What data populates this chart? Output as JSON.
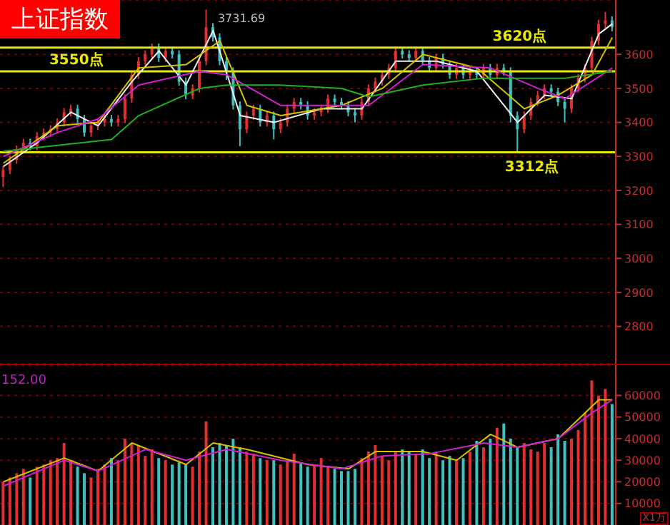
{
  "chart_data": [
    {
      "type": "candlestick",
      "title": "上证指数",
      "categories": [
        null,
        null,
        null,
        null,
        null,
        null,
        null,
        null,
        null,
        null,
        null,
        null,
        null,
        null,
        null,
        null,
        null,
        null,
        null,
        null,
        null,
        null,
        null,
        null,
        null,
        null,
        null,
        null,
        null,
        null,
        null,
        null,
        null,
        null,
        null,
        null,
        null,
        null,
        null,
        null,
        null,
        null,
        null,
        null,
        null,
        null,
        null,
        null,
        null,
        null,
        null,
        null,
        null,
        null,
        null,
        null,
        null,
        null,
        null,
        null,
        null,
        null,
        null,
        null,
        null,
        null,
        null,
        null,
        null,
        null,
        null,
        null,
        null,
        null,
        null,
        null,
        null,
        null,
        null,
        null,
        null,
        null,
        null,
        null,
        null,
        null,
        null,
        null,
        null,
        null,
        null
      ],
      "ohlc": [
        [
          3240,
          3272,
          3210,
          3260
        ],
        [
          3260,
          3302,
          3248,
          3290
        ],
        [
          3290,
          3332,
          3278,
          3320
        ],
        [
          3320,
          3352,
          3308,
          3340
        ],
        [
          3340,
          3352,
          3318,
          3330
        ],
        [
          3330,
          3372,
          3318,
          3360
        ],
        [
          3360,
          3382,
          3348,
          3370
        ],
        [
          3370,
          3392,
          3358,
          3380
        ],
        [
          3380,
          3412,
          3368,
          3400
        ],
        [
          3400,
          3442,
          3388,
          3430
        ],
        [
          3430,
          3452,
          3418,
          3440
        ],
        [
          3440,
          3452,
          3398,
          3410
        ],
        [
          3410,
          3422,
          3358,
          3370
        ],
        [
          3370,
          3402,
          3358,
          3390
        ],
        [
          3390,
          3412,
          3378,
          3400
        ],
        [
          3400,
          3422,
          3388,
          3410
        ],
        [
          3410,
          3422,
          3388,
          3400
        ],
        [
          3400,
          3422,
          3388,
          3410
        ],
        [
          3410,
          3482,
          3398,
          3470
        ],
        [
          3470,
          3552,
          3458,
          3540
        ],
        [
          3540,
          3592,
          3528,
          3580
        ],
        [
          3580,
          3612,
          3568,
          3600
        ],
        [
          3600,
          3632,
          3588,
          3620
        ],
        [
          3620,
          3632,
          3578,
          3590
        ],
        [
          3590,
          3622,
          3578,
          3610
        ],
        [
          3610,
          3622,
          3588,
          3600
        ],
        [
          3600,
          3612,
          3508,
          3520
        ],
        [
          3520,
          3532,
          3468,
          3480
        ],
        [
          3480,
          3512,
          3468,
          3500
        ],
        [
          3500,
          3592,
          3488,
          3580
        ],
        [
          3580,
          3731.69,
          3568,
          3680
        ],
        [
          3680,
          3692,
          3638,
          3650
        ],
        [
          3650,
          3662,
          3568,
          3580
        ],
        [
          3580,
          3592,
          3525,
          3550
        ],
        [
          3550,
          3562,
          3438,
          3450
        ],
        [
          3450,
          3462,
          3330,
          3380
        ],
        [
          3380,
          3432,
          3368,
          3420
        ],
        [
          3420,
          3452,
          3408,
          3440
        ],
        [
          3440,
          3452,
          3388,
          3400
        ],
        [
          3400,
          3432,
          3388,
          3420
        ],
        [
          3420,
          3432,
          3350,
          3380
        ],
        [
          3380,
          3412,
          3368,
          3400
        ],
        [
          3400,
          3452,
          3388,
          3440
        ],
        [
          3440,
          3472,
          3428,
          3460
        ],
        [
          3460,
          3472,
          3438,
          3450
        ],
        [
          3450,
          3462,
          3408,
          3420
        ],
        [
          3420,
          3442,
          3408,
          3430
        ],
        [
          3430,
          3452,
          3418,
          3440
        ],
        [
          3440,
          3482,
          3428,
          3470
        ],
        [
          3470,
          3482,
          3448,
          3460
        ],
        [
          3460,
          3472,
          3438,
          3450
        ],
        [
          3450,
          3462,
          3418,
          3430
        ],
        [
          3430,
          3442,
          3400,
          3420
        ],
        [
          3420,
          3472,
          3408,
          3460
        ],
        [
          3460,
          3512,
          3448,
          3500
        ],
        [
          3500,
          3532,
          3488,
          3520
        ],
        [
          3520,
          3552,
          3508,
          3540
        ],
        [
          3540,
          3572,
          3528,
          3560
        ],
        [
          3560,
          3622,
          3548,
          3610
        ],
        [
          3610,
          3622,
          3588,
          3600
        ],
        [
          3600,
          3612,
          3578,
          3590
        ],
        [
          3590,
          3622,
          3578,
          3610
        ],
        [
          3610,
          3622,
          3568,
          3580
        ],
        [
          3580,
          3592,
          3548,
          3560
        ],
        [
          3560,
          3602,
          3548,
          3590
        ],
        [
          3590,
          3602,
          3558,
          3570
        ],
        [
          3570,
          3582,
          3528,
          3540
        ],
        [
          3540,
          3572,
          3528,
          3560
        ],
        [
          3560,
          3572,
          3528,
          3540
        ],
        [
          3540,
          3562,
          3528,
          3550
        ],
        [
          3550,
          3562,
          3528,
          3540
        ],
        [
          3540,
          3572,
          3528,
          3560
        ],
        [
          3560,
          3572,
          3528,
          3540
        ],
        [
          3540,
          3572,
          3528,
          3560
        ],
        [
          3560,
          3572,
          3538,
          3550
        ],
        [
          3550,
          3562,
          3400,
          3420
        ],
        [
          3420,
          3432,
          3312,
          3380
        ],
        [
          3380,
          3432,
          3368,
          3420
        ],
        [
          3420,
          3472,
          3408,
          3460
        ],
        [
          3460,
          3492,
          3448,
          3480
        ],
        [
          3480,
          3512,
          3468,
          3500
        ],
        [
          3500,
          3512,
          3478,
          3490
        ],
        [
          3490,
          3502,
          3448,
          3460
        ],
        [
          3460,
          3472,
          3400,
          3440
        ],
        [
          3440,
          3512,
          3428,
          3500
        ],
        [
          3500,
          3542,
          3488,
          3530
        ],
        [
          3530,
          3572,
          3518,
          3560
        ],
        [
          3560,
          3652,
          3548,
          3640
        ],
        [
          3640,
          3702,
          3628,
          3690
        ],
        [
          3690,
          3725,
          3678,
          3700
        ],
        [
          3700,
          3712,
          3668,
          3680
        ]
      ],
      "colors": [
        "#e03030",
        "#e03030",
        "#e03030",
        "#e03030",
        "#40c0c0",
        "#e03030",
        "#e03030",
        "#e03030",
        "#e03030",
        "#e03030",
        "#e03030",
        "#40c0c0",
        "#40c0c0",
        "#e03030",
        "#e03030",
        "#e03030",
        "#40c0c0",
        "#e03030",
        "#e03030",
        "#e03030",
        "#e03030",
        "#e03030",
        "#e03030",
        "#40c0c0",
        "#e03030",
        "#40c0c0",
        "#40c0c0",
        "#40c0c0",
        "#e03030",
        "#e03030",
        "#e03030",
        "#40c0c0",
        "#40c0c0",
        "#40c0c0",
        "#40c0c0",
        "#40c0c0",
        "#e03030",
        "#e03030",
        "#40c0c0",
        "#e03030",
        "#40c0c0",
        "#e03030",
        "#e03030",
        "#e03030",
        "#40c0c0",
        "#40c0c0",
        "#e03030",
        "#e03030",
        "#e03030",
        "#40c0c0",
        "#40c0c0",
        "#40c0c0",
        "#40c0c0",
        "#e03030",
        "#e03030",
        "#e03030",
        "#e03030",
        "#e03030",
        "#e03030",
        "#40c0c0",
        "#40c0c0",
        "#e03030",
        "#40c0c0",
        "#40c0c0",
        "#e03030",
        "#40c0c0",
        "#40c0c0",
        "#e03030",
        "#40c0c0",
        "#e03030",
        "#40c0c0",
        "#e03030",
        "#40c0c0",
        "#e03030",
        "#40c0c0",
        "#40c0c0",
        "#40c0c0",
        "#e03030",
        "#e03030",
        "#e03030",
        "#e03030",
        "#40c0c0",
        "#40c0c0",
        "#40c0c0",
        "#e03030",
        "#e03030",
        "#e03030",
        "#e03030",
        "#e03030",
        "#e03030",
        "#40c0c0"
      ],
      "series": [
        {
          "type": "line",
          "color": "#f0f0f0",
          "values": [
            3270,
            null,
            null,
            null,
            null,
            3340,
            null,
            null,
            null,
            null,
            3430,
            null,
            null,
            null,
            3390,
            null,
            null,
            null,
            null,
            3520,
            null,
            null,
            null,
            3610,
            null,
            null,
            null,
            3510,
            null,
            null,
            null,
            3670,
            null,
            null,
            null,
            3420,
            null,
            null,
            null,
            null,
            3400,
            null,
            null,
            null,
            null,
            null,
            null,
            3440,
            null,
            null,
            null,
            null,
            null,
            3440,
            null,
            null,
            null,
            null,
            3580,
            null,
            null,
            null,
            null,
            null,
            3580,
            null,
            null,
            null,
            null,
            null,
            3550,
            null,
            null,
            null,
            null,
            null,
            3400,
            null,
            null,
            null,
            3480,
            null,
            null,
            null,
            3470,
            null,
            null,
            null,
            3660,
            null,
            3690
          ]
        },
        {
          "type": "line",
          "color": "#d4c400",
          "values": [
            3280,
            null,
            null,
            null,
            null,
            null,
            null,
            null,
            3390,
            null,
            null,
            null,
            null,
            null,
            3400,
            null,
            null,
            null,
            null,
            null,
            3560,
            null,
            null,
            null,
            null,
            null,
            null,
            3570,
            null,
            null,
            null,
            null,
            3640,
            null,
            null,
            null,
            3450,
            null,
            null,
            null,
            null,
            3420,
            null,
            null,
            null,
            null,
            null,
            null,
            null,
            null,
            3450,
            null,
            null,
            null,
            null,
            null,
            3500,
            null,
            null,
            null,
            null,
            null,
            3600,
            null,
            null,
            null,
            null,
            null,
            null,
            null,
            3560,
            null,
            null,
            null,
            null,
            null,
            null,
            3440,
            null,
            null,
            null,
            null,
            3480,
            null,
            null,
            null,
            null,
            3540,
            null,
            null,
            3650
          ]
        },
        {
          "type": "line",
          "color": "#d020d0",
          "values": [
            3300,
            null,
            null,
            null,
            null,
            null,
            null,
            null,
            3370,
            null,
            null,
            null,
            null,
            null,
            3410,
            null,
            null,
            null,
            null,
            null,
            3510,
            null,
            null,
            null,
            null,
            null,
            null,
            null,
            null,
            3550,
            null,
            null,
            null,
            3540,
            null,
            null,
            null,
            null,
            null,
            null,
            null,
            3450,
            null,
            null,
            null,
            null,
            null,
            null,
            null,
            null,
            null,
            null,
            null,
            null,
            3450,
            null,
            null,
            null,
            null,
            null,
            null,
            null,
            3570,
            null,
            null,
            null,
            null,
            null,
            null,
            null,
            null,
            null,
            3560,
            null,
            null,
            null,
            null,
            null,
            null,
            3500,
            null,
            null,
            null,
            3470,
            null,
            null,
            null,
            null,
            null,
            null,
            3560
          ]
        },
        {
          "type": "line",
          "color": "#20b020",
          "values": [
            3315,
            null,
            null,
            null,
            null,
            null,
            null,
            null,
            null,
            null,
            null,
            null,
            null,
            null,
            null,
            null,
            3350,
            null,
            null,
            null,
            3420,
            null,
            null,
            null,
            null,
            null,
            null,
            null,
            null,
            3500,
            null,
            null,
            null,
            3510,
            null,
            null,
            null,
            null,
            null,
            null,
            null,
            3510,
            null,
            null,
            null,
            null,
            null,
            null,
            null,
            null,
            3500,
            null,
            null,
            null,
            3475,
            null,
            null,
            null,
            null,
            null,
            null,
            null,
            3510,
            null,
            null,
            null,
            null,
            null,
            null,
            null,
            null,
            3530,
            null,
            null,
            null,
            null,
            null,
            null,
            null,
            null,
            null,
            null,
            null,
            3530,
            null,
            null,
            null,
            null,
            null,
            null,
            3550
          ]
        }
      ],
      "ref_lines": [
        {
          "axis": "y",
          "value": 3620,
          "label": "3620点",
          "color": "#e8e800"
        },
        {
          "axis": "y",
          "value": 3550,
          "label": "3550点",
          "color": "#e8e800"
        },
        {
          "axis": "y",
          "value": 3312,
          "label": "3312点",
          "color": "#e8e800"
        }
      ],
      "annotations": [
        "3731.69"
      ],
      "ylim": [
        2690,
        3760
      ],
      "yticks": [
        2800,
        2900,
        3000,
        3100,
        3200,
        3300,
        3400,
        3500,
        3600
      ],
      "grid": "y",
      "tick_labels": "y"
    },
    {
      "type": "bar",
      "categories": [
        null,
        null,
        null,
        null,
        null,
        null,
        null,
        null,
        null,
        null,
        null,
        null,
        null,
        null,
        null,
        null,
        null,
        null,
        null,
        null,
        null,
        null,
        null,
        null,
        null,
        null,
        null,
        null,
        null,
        null,
        null,
        null,
        null,
        null,
        null,
        null,
        null,
        null,
        null,
        null,
        null,
        null,
        null,
        null,
        null,
        null,
        null,
        null,
        null,
        null,
        null,
        null,
        null,
        null,
        null,
        null,
        null,
        null,
        null,
        null,
        null,
        null,
        null,
        null,
        null,
        null,
        null,
        null,
        null,
        null,
        null,
        null,
        null,
        null,
        null,
        null,
        null,
        null,
        null,
        null,
        null,
        null,
        null,
        null,
        null,
        null,
        null,
        null,
        null,
        null,
        null
      ],
      "values": [
        20000,
        22000,
        24000,
        26000,
        22000,
        27000,
        28000,
        30000,
        31000,
        38000,
        30000,
        27000,
        24000,
        22000,
        26000,
        28000,
        31000,
        30000,
        40000,
        38000,
        37000,
        32000,
        35000,
        31000,
        30000,
        28000,
        29000,
        28000,
        27000,
        34000,
        48000,
        36000,
        38000,
        37000,
        40000,
        36000,
        34000,
        33000,
        31000,
        30000,
        30000,
        28000,
        30000,
        33000,
        29000,
        27000,
        28000,
        31000,
        27000,
        26000,
        25000,
        25000,
        26000,
        31000,
        34000,
        37000,
        32000,
        30000,
        34000,
        35000,
        34000,
        33000,
        35000,
        31000,
        34000,
        30000,
        32000,
        30000,
        31000,
        34000,
        39000,
        36000,
        40000,
        45000,
        47000,
        40000,
        36000,
        38000,
        35000,
        34000,
        38000,
        36000,
        42000,
        39000,
        40000,
        44000,
        52000,
        67000,
        60000,
        63000,
        56000
      ],
      "colors": [
        "#e03030",
        "#e03030",
        "#e03030",
        "#e03030",
        "#40c0c0",
        "#e03030",
        "#e03030",
        "#e03030",
        "#e03030",
        "#e03030",
        "#e03030",
        "#40c0c0",
        "#40c0c0",
        "#e03030",
        "#e03030",
        "#e03030",
        "#40c0c0",
        "#e03030",
        "#e03030",
        "#e03030",
        "#e03030",
        "#e03030",
        "#e03030",
        "#40c0c0",
        "#e03030",
        "#40c0c0",
        "#40c0c0",
        "#40c0c0",
        "#e03030",
        "#e03030",
        "#e03030",
        "#40c0c0",
        "#40c0c0",
        "#40c0c0",
        "#40c0c0",
        "#40c0c0",
        "#e03030",
        "#e03030",
        "#40c0c0",
        "#e03030",
        "#40c0c0",
        "#e03030",
        "#e03030",
        "#e03030",
        "#40c0c0",
        "#40c0c0",
        "#e03030",
        "#e03030",
        "#e03030",
        "#40c0c0",
        "#40c0c0",
        "#40c0c0",
        "#40c0c0",
        "#e03030",
        "#e03030",
        "#e03030",
        "#e03030",
        "#e03030",
        "#e03030",
        "#40c0c0",
        "#40c0c0",
        "#e03030",
        "#40c0c0",
        "#40c0c0",
        "#e03030",
        "#40c0c0",
        "#40c0c0",
        "#e03030",
        "#40c0c0",
        "#e03030",
        "#40c0c0",
        "#e03030",
        "#40c0c0",
        "#e03030",
        "#40c0c0",
        "#40c0c0",
        "#40c0c0",
        "#e03030",
        "#e03030",
        "#e03030",
        "#e03030",
        "#40c0c0",
        "#40c0c0",
        "#40c0c0",
        "#e03030",
        "#e03030",
        "#e03030",
        "#e03030",
        "#e03030",
        "#e03030",
        "#40c0c0"
      ],
      "series": [
        {
          "type": "line",
          "color": "#d4c400",
          "values": [
            20000,
            null,
            null,
            null,
            null,
            null,
            null,
            null,
            null,
            31000,
            null,
            null,
            null,
            null,
            25000,
            null,
            null,
            null,
            null,
            38000,
            null,
            null,
            null,
            null,
            null,
            null,
            null,
            28000,
            null,
            null,
            null,
            38000,
            null,
            null,
            null,
            null,
            35000,
            null,
            null,
            null,
            null,
            null,
            null,
            null,
            null,
            28000,
            null,
            null,
            null,
            null,
            null,
            26000,
            null,
            null,
            null,
            34000,
            null,
            null,
            null,
            null,
            null,
            null,
            34000,
            null,
            null,
            null,
            null,
            30000,
            null,
            null,
            null,
            null,
            42000,
            null,
            null,
            null,
            36000,
            null,
            null,
            null,
            null,
            null,
            40000,
            null,
            null,
            null,
            null,
            null,
            58000,
            null,
            58000
          ]
        },
        {
          "type": "line",
          "color": "#d020d0",
          "values": [
            18000,
            null,
            null,
            null,
            null,
            null,
            null,
            null,
            null,
            30000,
            null,
            null,
            null,
            null,
            25000,
            null,
            null,
            null,
            null,
            null,
            null,
            35000,
            null,
            null,
            null,
            null,
            null,
            30000,
            null,
            null,
            null,
            null,
            null,
            35000,
            null,
            null,
            null,
            null,
            null,
            null,
            null,
            30000,
            null,
            null,
            null,
            null,
            null,
            null,
            null,
            null,
            26000,
            null,
            null,
            null,
            null,
            null,
            32000,
            null,
            null,
            null,
            null,
            null,
            null,
            33000,
            null,
            null,
            null,
            null,
            null,
            null,
            null,
            38000,
            null,
            null,
            null,
            null,
            36000,
            null,
            null,
            null,
            null,
            null,
            40000,
            null,
            null,
            null,
            null,
            52000,
            null,
            null,
            58000
          ]
        }
      ],
      "annotations": [
        "152.00",
        "X1万"
      ],
      "ylim": [
        0,
        74000
      ],
      "yticks": [
        10000,
        20000,
        30000,
        40000,
        50000,
        60000
      ],
      "grid": "y",
      "tick_labels": "y"
    }
  ]
}
